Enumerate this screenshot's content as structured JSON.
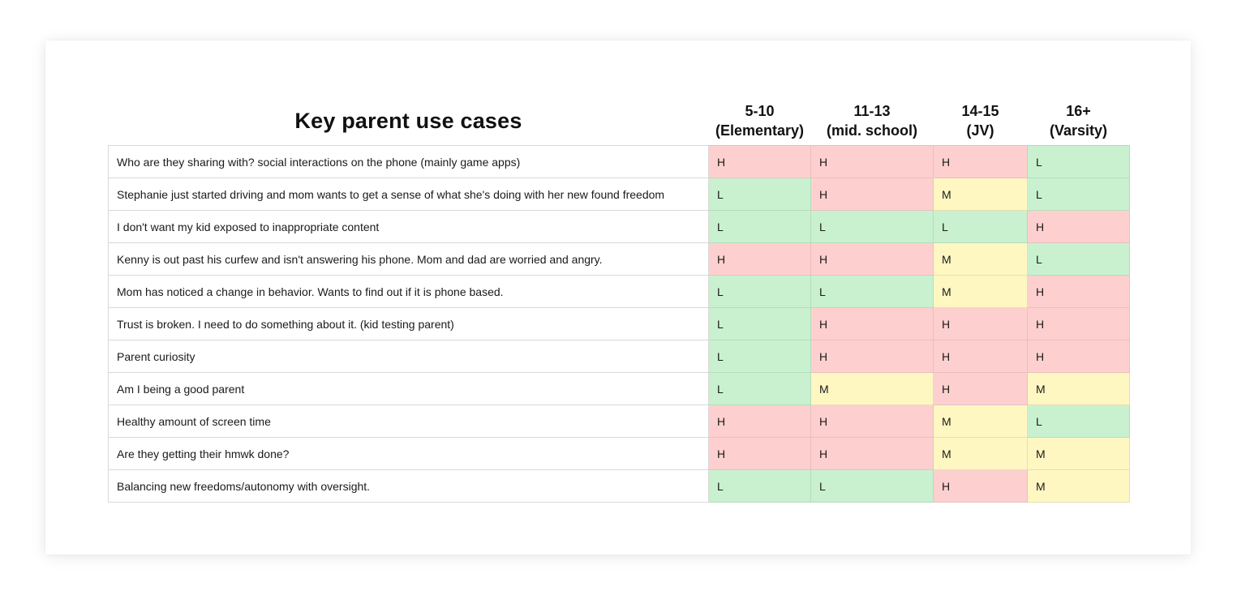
{
  "chart_data": {
    "type": "table",
    "title": "Key parent use cases",
    "columns": [
      {
        "lines": [
          "5-10",
          "(Elementary)"
        ]
      },
      {
        "lines": [
          "11-13",
          "(mid. school)"
        ]
      },
      {
        "lines": [
          "14-15",
          "(JV)"
        ]
      },
      {
        "lines": [
          "16+",
          "(Varsity)"
        ]
      }
    ],
    "rows": [
      {
        "label": "Who are they sharing with? social interactions on the phone (mainly game apps)",
        "values": [
          "H",
          "H",
          "H",
          "L"
        ]
      },
      {
        "label": "Stephanie just started driving and mom wants to get a sense of what she's doing with her new found freedom",
        "values": [
          "L",
          "H",
          "M",
          "L"
        ]
      },
      {
        "label": "I don't want my kid exposed to inappropriate content",
        "values": [
          "L",
          "L",
          "L",
          "H"
        ]
      },
      {
        "label": "Kenny is out past his curfew and isn't answering his phone. Mom and dad are worried and angry.",
        "values": [
          "H",
          "H",
          "M",
          "L"
        ]
      },
      {
        "label": "Mom has noticed a change in behavior. Wants to find out if it is phone based.",
        "values": [
          "L",
          "L",
          "M",
          "H"
        ]
      },
      {
        "label": "Trust is broken. I need to do something about it. (kid testing parent)",
        "values": [
          "L",
          "H",
          "H",
          "H"
        ]
      },
      {
        "label": "Parent curiosity",
        "values": [
          "L",
          "H",
          "H",
          "H"
        ]
      },
      {
        "label": "Am I being a good parent",
        "values": [
          "L",
          "M",
          "H",
          "M"
        ]
      },
      {
        "label": "Healthy amount of screen time",
        "values": [
          "H",
          "H",
          "M",
          "L"
        ]
      },
      {
        "label": "Are they getting their hmwk done?",
        "values": [
          "H",
          "H",
          "M",
          "M"
        ]
      },
      {
        "label": "Balancing new freedoms/autonomy with oversight.",
        "values": [
          "L",
          "L",
          "H",
          "M"
        ]
      }
    ],
    "level_colors": {
      "H": "#fdd0cf",
      "M": "#fff7c2",
      "L": "#c9f1d0"
    }
  }
}
